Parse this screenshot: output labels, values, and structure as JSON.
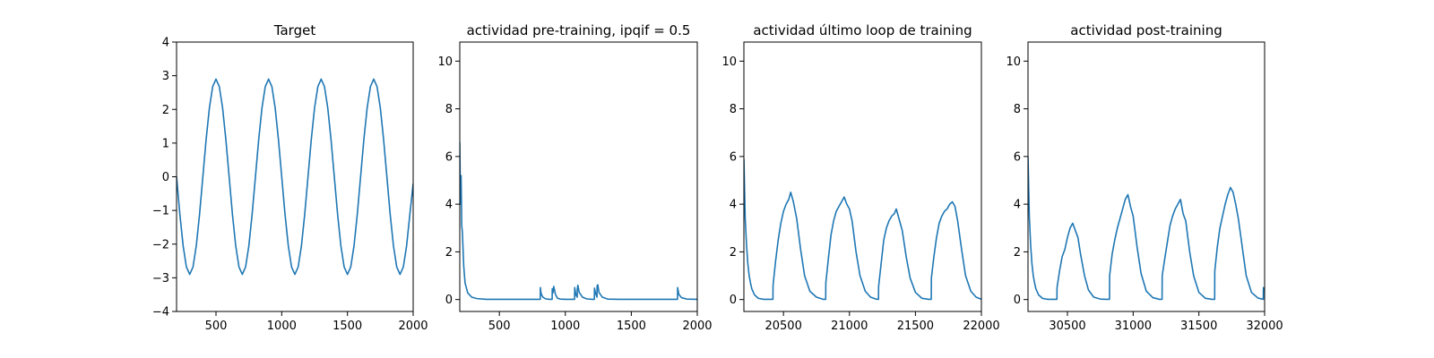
{
  "chart_data": [
    {
      "type": "line",
      "title": "Target",
      "xlim": [
        200,
        2000
      ],
      "ylim": [
        -4,
        4
      ],
      "xticks": [
        500,
        1000,
        1500,
        2000
      ],
      "yticks": [
        -4,
        -3,
        -2,
        -1,
        0,
        1,
        2,
        3,
        4
      ],
      "series": [
        {
          "x": [
            200,
            225,
            250,
            275,
            300,
            325,
            350,
            375,
            400,
            425,
            450,
            475,
            500,
            525,
            550,
            575,
            600,
            625,
            650,
            675,
            700,
            725,
            750,
            775,
            800,
            825,
            850,
            875,
            900,
            925,
            950,
            975,
            1000,
            1025,
            1050,
            1075,
            1100,
            1125,
            1150,
            1175,
            1200,
            1225,
            1250,
            1275,
            1300,
            1325,
            1350,
            1375,
            1400,
            1425,
            1450,
            1475,
            1500,
            1525,
            1550,
            1575,
            1600,
            1625,
            1650,
            1675,
            1700,
            1725,
            1750,
            1775,
            1800,
            1825,
            1850,
            1875,
            1900,
            1925,
            1950,
            1975,
            2000
          ],
          "y": [
            0.0,
            -1.11,
            -2.05,
            -2.68,
            -2.9,
            -2.68,
            -2.05,
            -1.11,
            0.0,
            1.11,
            2.05,
            2.68,
            2.9,
            2.68,
            2.05,
            1.11,
            0.0,
            -1.11,
            -2.05,
            -2.68,
            -2.9,
            -2.68,
            -2.05,
            -1.11,
            0.0,
            1.11,
            2.05,
            2.68,
            2.9,
            2.68,
            2.05,
            1.11,
            0.0,
            -1.11,
            -2.05,
            -2.68,
            -2.9,
            -2.68,
            -2.05,
            -1.11,
            0.0,
            1.11,
            2.05,
            2.68,
            2.9,
            2.68,
            2.05,
            1.11,
            0.0,
            -1.11,
            -2.05,
            -2.68,
            -2.9,
            -2.68,
            -2.05,
            -1.11,
            0.0,
            1.11,
            2.05,
            2.68,
            2.9,
            2.68,
            2.05,
            1.11,
            0.0,
            -1.11,
            -2.05,
            -2.68,
            -2.9,
            -2.68,
            -2.05,
            -1.11,
            -0.2
          ]
        }
      ]
    },
    {
      "type": "line",
      "title": "actividad pre-training, ipqif = 0.5",
      "xlim": [
        200,
        2000
      ],
      "ylim": [
        -0.5,
        10.8
      ],
      "xticks": [
        500,
        1000,
        1500,
        2000
      ],
      "yticks": [
        0,
        2,
        4,
        6,
        8,
        10
      ],
      "series": [
        {
          "x": [
            200,
            205,
            210,
            215,
            220,
            230,
            240,
            260,
            290,
            330,
            400,
            500,
            600,
            700,
            800,
            810,
            811,
            815,
            820,
            830,
            850,
            880,
            900,
            901,
            906,
            912,
            925,
            940,
            960,
            1000,
            1050,
            1070,
            1071,
            1080,
            1090,
            1091,
            1095,
            1105,
            1130,
            1160,
            1200,
            1220,
            1221,
            1230,
            1240,
            1241,
            1246,
            1255,
            1280,
            1320,
            1400,
            1500,
            1600,
            1700,
            1800,
            1850,
            1851,
            1860,
            1880,
            1920,
            2000
          ],
          "y": [
            6.6,
            4.0,
            5.2,
            3.1,
            2.8,
            1.4,
            0.7,
            0.28,
            0.1,
            0.04,
            0.01,
            0.01,
            0.01,
            0.01,
            0.01,
            0.01,
            0.5,
            0.3,
            0.2,
            0.1,
            0.03,
            0.01,
            0.01,
            0.45,
            0.28,
            0.55,
            0.22,
            0.06,
            0.02,
            0.01,
            0.01,
            0.01,
            0.5,
            0.2,
            0.1,
            0.45,
            0.6,
            0.3,
            0.1,
            0.03,
            0.01,
            0.01,
            0.48,
            0.25,
            0.1,
            0.58,
            0.62,
            0.3,
            0.1,
            0.02,
            0.01,
            0.01,
            0.01,
            0.01,
            0.01,
            0.01,
            0.5,
            0.22,
            0.08,
            0.02,
            0.01
          ]
        }
      ]
    },
    {
      "type": "line",
      "title": "actividad último loop de training",
      "xlim": [
        20200,
        22000
      ],
      "ylim": [
        -0.5,
        10.8
      ],
      "xticks": [
        20500,
        21000,
        21500,
        22000
      ],
      "yticks": [
        0,
        2,
        4,
        6,
        8,
        10
      ],
      "series": [
        {
          "x": [
            20200,
            20210,
            20220,
            20230,
            20240,
            20250,
            20260,
            20280,
            20310,
            20350,
            20400,
            20420,
            20421,
            20440,
            20460,
            20480,
            20500,
            20520,
            20540,
            20555,
            20575,
            20600,
            20630,
            20660,
            20700,
            20750,
            20800,
            20820,
            20821,
            20840,
            20860,
            20880,
            20900,
            20920,
            20940,
            20960,
            20980,
            21000,
            21020,
            21050,
            21080,
            21120,
            21160,
            21200,
            21220,
            21221,
            21240,
            21260,
            21280,
            21300,
            21320,
            21340,
            21355,
            21375,
            21400,
            21430,
            21460,
            21500,
            21550,
            21600,
            21620,
            21621,
            21640,
            21660,
            21680,
            21700,
            21720,
            21740,
            21760,
            21780,
            21800,
            21820,
            21850,
            21880,
            21920,
            21960,
            22000
          ],
          "y": [
            5.9,
            3.4,
            2.3,
            1.5,
            1.0,
            0.7,
            0.45,
            0.2,
            0.05,
            0.01,
            0.01,
            0.01,
            0.6,
            1.6,
            2.5,
            3.2,
            3.7,
            4.0,
            4.2,
            4.5,
            4.1,
            3.4,
            2.1,
            1.0,
            0.35,
            0.1,
            0.01,
            0.01,
            0.7,
            1.7,
            2.7,
            3.3,
            3.7,
            3.9,
            4.1,
            4.3,
            4.0,
            3.8,
            3.3,
            2.0,
            1.0,
            0.35,
            0.1,
            0.02,
            0.01,
            0.55,
            1.5,
            2.5,
            3.0,
            3.3,
            3.5,
            3.6,
            3.8,
            3.4,
            2.9,
            1.8,
            0.9,
            0.3,
            0.05,
            0.01,
            0.01,
            0.9,
            1.8,
            2.6,
            3.2,
            3.5,
            3.7,
            3.8,
            4.0,
            4.1,
            3.9,
            3.3,
            2.1,
            1.0,
            0.35,
            0.1,
            0.01
          ]
        }
      ]
    },
    {
      "type": "line",
      "title": "actividad post-training",
      "xlim": [
        30200,
        32000
      ],
      "ylim": [
        -0.5,
        10.8
      ],
      "xticks": [
        30500,
        31000,
        31500,
        32000
      ],
      "yticks": [
        0,
        2,
        4,
        6,
        8,
        10
      ],
      "series": [
        {
          "x": [
            30200,
            30210,
            30220,
            30230,
            30240,
            30250,
            30260,
            30280,
            30310,
            30350,
            30400,
            30420,
            30421,
            30440,
            30460,
            30480,
            30500,
            30520,
            30540,
            30560,
            30580,
            30600,
            30630,
            30660,
            30700,
            30750,
            30800,
            30820,
            30821,
            30840,
            30860,
            30880,
            30900,
            30920,
            30940,
            30960,
            30980,
            31000,
            31030,
            31060,
            31100,
            31150,
            31200,
            31220,
            31221,
            31240,
            31260,
            31280,
            31300,
            31320,
            31340,
            31360,
            31380,
            31400,
            31430,
            31460,
            31500,
            31550,
            31600,
            31620,
            31621,
            31640,
            31660,
            31680,
            31700,
            31720,
            31740,
            31760,
            31780,
            31800,
            31830,
            31860,
            31900,
            31950,
            31990,
            31991,
            32000
          ],
          "y": [
            6.0,
            3.5,
            2.3,
            1.5,
            1.0,
            0.7,
            0.45,
            0.2,
            0.05,
            0.01,
            0.01,
            0.01,
            0.5,
            1.2,
            1.8,
            2.1,
            2.6,
            3.0,
            3.2,
            2.9,
            2.6,
            1.9,
            1.0,
            0.4,
            0.1,
            0.02,
            0.01,
            0.01,
            1.0,
            1.9,
            2.5,
            3.0,
            3.4,
            3.8,
            4.2,
            4.4,
            3.9,
            3.5,
            2.2,
            1.1,
            0.35,
            0.08,
            0.01,
            0.01,
            1.0,
            1.7,
            2.4,
            3.1,
            3.5,
            3.8,
            4.0,
            4.2,
            3.6,
            3.3,
            2.0,
            1.0,
            0.3,
            0.05,
            0.01,
            0.01,
            1.2,
            2.2,
            3.0,
            3.5,
            4.0,
            4.4,
            4.7,
            4.5,
            4.0,
            3.4,
            2.2,
            1.0,
            0.3,
            0.06,
            0.01,
            0.5,
            0.3
          ]
        }
      ]
    }
  ],
  "colors": {
    "line": "#1f77b4",
    "axes": "#000000",
    "background": "#ffffff"
  }
}
